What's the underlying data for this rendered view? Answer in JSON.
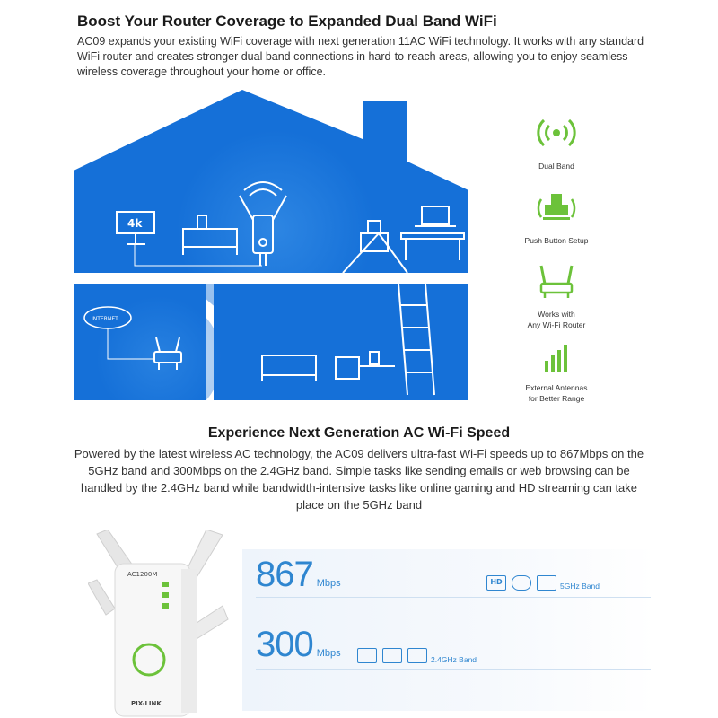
{
  "section1": {
    "title": "Boost Your Router Coverage to Expanded Dual Band WiFi",
    "body": "AC09 expands your existing WiFi coverage with next generation 11AC WiFi technology. It works with any standard WiFi router and creates stronger dual band connections in hard-to-reach areas, allowing you to enjoy seamless wireless coverage throughout your home or office."
  },
  "illustration": {
    "tv_label": "4k",
    "internet_label": "INTERNET"
  },
  "features": [
    {
      "icon": "signal-icon",
      "label": "Dual Band"
    },
    {
      "icon": "push-button-icon",
      "label": "Push Button Setup"
    },
    {
      "icon": "router-icon",
      "label": "Works with\nAny Wi-Fi Router"
    },
    {
      "icon": "antenna-bars-icon",
      "label": "External Antennas\nfor Better Range"
    }
  ],
  "section2": {
    "title": "Experience Next Generation AC Wi-Fi Speed",
    "body": "Powered by the latest wireless AC technology, the AC09 delivers ultra-fast Wi-Fi speeds up to 867Mbps on the 5GHz band and 300Mbps on the 2.4GHz band. Simple tasks like sending emails or web browsing can be handled by the 2.4GHz band while bandwidth-intensive tasks like online gaming and HD streaming can take place on the 5GHz band"
  },
  "device": {
    "model_label": "AC1200M",
    "brand": "PIX-LINK"
  },
  "speeds": [
    {
      "value": "867",
      "unit": "Mbps",
      "band": "5GHz Band",
      "icons": [
        "hd-icon",
        "cloud-download-icon",
        "gamepad-icon"
      ]
    },
    {
      "value": "300",
      "unit": "Mbps",
      "band": "2.4GHz Band",
      "icons": [
        "mail-icon",
        "image-icon",
        "video-icon"
      ]
    }
  ],
  "colors": {
    "house_blue": "#1570d8",
    "accent_green": "#6cc23a",
    "speed_blue": "#2f86d0"
  }
}
